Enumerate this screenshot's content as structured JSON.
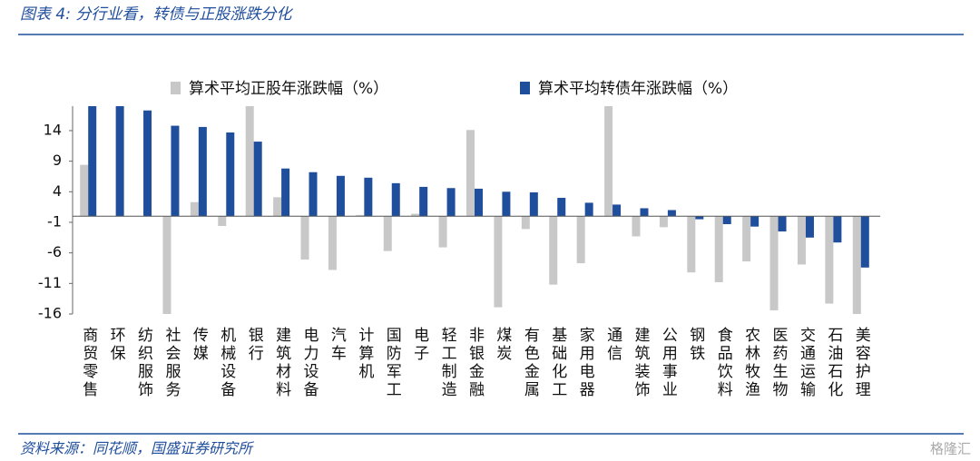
{
  "chart_data": {
    "type": "bar",
    "title": "图表 4:  分行业看，转债与正股涨跌分化",
    "source": "资料来源：同花顺，国盛证券研究所",
    "watermark": "格隆汇",
    "categories": [
      "商贸零售",
      "环保",
      "纺织服饰",
      "社会服务",
      "传媒",
      "机械设备",
      "银行",
      "建筑材料",
      "电力设备",
      "汽车",
      "计算机",
      "国防军工",
      "电子",
      "轻工制造",
      "非银金融",
      "煤炭",
      "有色金属",
      "基础化工",
      "家用电器",
      "通信",
      "建筑装饰",
      "公用事业",
      "钢铁",
      "食品饮料",
      "农林牧渔",
      "医药生物",
      "交通运输",
      "石油石化",
      "美容护理"
    ],
    "series": [
      {
        "name": "算术平均正股年涨跌幅（%）",
        "color": "#c8c8c8",
        "values": [
          8.4,
          0,
          0,
          -16.3,
          2.3,
          -1.6,
          18,
          3.1,
          -7.1,
          -8.8,
          0.2,
          -5.7,
          0.4,
          -5.1,
          14.1,
          -14.9,
          -2.1,
          -11.2,
          -7.7,
          18,
          -3.3,
          -1.8,
          -9.2,
          -10.8,
          -7.4,
          -15.4,
          -7.9,
          -14.3,
          -16.6
        ]
      },
      {
        "name": "算术平均转债年涨跌幅（%）",
        "color": "#1f4e9c",
        "values": [
          18,
          18,
          17.3,
          14.8,
          14.6,
          13.7,
          12.2,
          7.8,
          7.2,
          6.6,
          6.3,
          5.4,
          4.8,
          4.6,
          4.5,
          4.0,
          3.9,
          3.0,
          2.2,
          1.9,
          1.3,
          1.0,
          -0.5,
          -1.3,
          -1.7,
          -2.5,
          -3.5,
          -4.3,
          -8.4
        ]
      }
    ],
    "ylim": [
      -16,
      18
    ],
    "yticks": [
      14,
      9,
      4,
      -1,
      -6,
      -11,
      -16
    ],
    "grid": false,
    "legend": "top"
  }
}
